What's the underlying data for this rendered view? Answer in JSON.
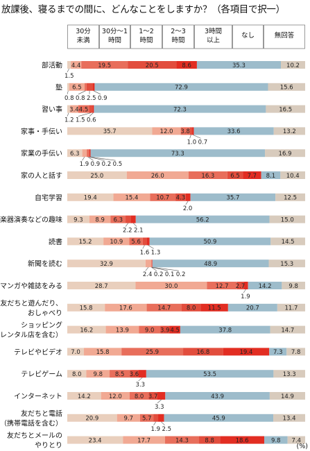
{
  "title": "放課後、寝るまでの間に、どんなことをしますか？（各項目で択一）",
  "unit_note": "(%)",
  "colors": [
    "#e9cfbd",
    "#f1a993",
    "#e86e5b",
    "#e22d22",
    "#9dbccb",
    "#d8cbbd"
  ],
  "chart_data": {
    "type": "bar",
    "orientation": "horizontal",
    "stacked": "100%",
    "legend_position": "top",
    "series": [
      {
        "name": "30分\n未満"
      },
      {
        "name": "30分～1\n時間"
      },
      {
        "name": "1～2\n時間"
      },
      {
        "name": "2～3\n時間"
      },
      {
        "name": "3時間\n以上"
      },
      {
        "name": "なし"
      },
      {
        "name": "無回答"
      }
    ],
    "categories": [
      {
        "label": "部活動",
        "values": [
          1.5,
          4.4,
          19.5,
          20.5,
          8.6,
          35.3,
          10.2
        ],
        "shown": [
          null,
          "4.4",
          "19.5",
          "20.5",
          "8.6",
          "35.3",
          "10.2"
        ],
        "callouts": [
          "1.5"
        ]
      },
      {
        "label": "塾",
        "values": [
          0.8,
          6.5,
          0.8,
          2.5,
          0.9,
          72.9,
          15.6
        ],
        "shown": [
          null,
          "6.5",
          null,
          null,
          null,
          "72.9",
          "15.6"
        ],
        "callouts": [
          "0.8",
          "0.8",
          "2.5",
          "0.9"
        ]
      },
      {
        "label": "習い事",
        "values": [
          1.2,
          3.4,
          4.5,
          1.5,
          0.6,
          72.3,
          16.5
        ],
        "shown": [
          null,
          "3.4",
          "4.5",
          null,
          null,
          "72.3",
          "16.5"
        ],
        "callouts": [
          "1.2",
          "1.5",
          "0.6"
        ]
      },
      {
        "label": "家事・手伝い",
        "values": [
          35.7,
          12.0,
          3.8,
          1.0,
          0.7,
          33.6,
          13.2
        ],
        "shown": [
          "35.7",
          "12.0",
          "3.8",
          null,
          null,
          "33.6",
          "13.2"
        ],
        "callouts": [
          "1.0",
          "0.7"
        ]
      },
      {
        "label": "家業の手伝い",
        "values": [
          6.3,
          1.9,
          0.9,
          0.2,
          0.5,
          73.3,
          16.9
        ],
        "shown": [
          "6.3",
          null,
          null,
          null,
          null,
          "73.3",
          "16.9"
        ],
        "callouts": [
          "1.9",
          "0.9",
          "0.2",
          "0.5"
        ]
      },
      {
        "label": "家の人と話す",
        "values": [
          25.0,
          26.0,
          16.3,
          6.5,
          7.7,
          8.1,
          10.4
        ],
        "shown": [
          "25.0",
          "26.0",
          "16.3",
          "6.5",
          "7.7",
          "8.1",
          "10.4"
        ],
        "callouts": []
      },
      {
        "label": "自宅学習",
        "values": [
          19.4,
          15.4,
          10.7,
          4.3,
          2.0,
          35.7,
          12.5
        ],
        "shown": [
          "19.4",
          "15.4",
          "10.7",
          "4.3",
          null,
          "35.7",
          "12.5"
        ],
        "callouts": [
          "2.0"
        ]
      },
      {
        "label": "楽器演奏などの趣味",
        "values": [
          9.3,
          8.9,
          6.3,
          2.2,
          2.1,
          56.2,
          15.0
        ],
        "shown": [
          "9.3",
          "8.9",
          "6.3",
          null,
          null,
          "56.2",
          "15.0"
        ],
        "callouts": [
          "2.2",
          "2.1"
        ]
      },
      {
        "label": "読書",
        "values": [
          15.2,
          10.9,
          5.6,
          1.6,
          1.3,
          50.9,
          14.5
        ],
        "shown": [
          "15.2",
          "10.9",
          "5.6",
          null,
          null,
          "50.9",
          "14.5"
        ],
        "callouts": [
          "1.6",
          "1.3"
        ]
      },
      {
        "label": "新聞を読む",
        "values": [
          32.9,
          2.4,
          0.2,
          0.1,
          0.2,
          48.9,
          15.3
        ],
        "shown": [
          "32.9",
          null,
          null,
          null,
          null,
          "48.9",
          "15.3"
        ],
        "callouts": [
          "2.4",
          "0.2",
          "0.1",
          "0.2"
        ]
      },
      {
        "label": "マンガや雑誌をみる",
        "values": [
          28.7,
          30.0,
          12.7,
          2.7,
          1.9,
          14.2,
          9.8
        ],
        "shown": [
          "28.7",
          "30.0",
          "12.7",
          "2.7",
          null,
          "14.2",
          "9.8"
        ],
        "callouts": [
          "1.9"
        ]
      },
      {
        "label": "友だちと遊んだり、\nおしゃべり",
        "values": [
          15.8,
          17.6,
          14.7,
          8.0,
          11.5,
          20.7,
          11.7
        ],
        "shown": [
          "15.8",
          "17.6",
          "14.7",
          "8.0",
          "11.5",
          "20.7",
          "11.7"
        ],
        "callouts": []
      },
      {
        "label": "ショッピング\n（レンタル店を含む）",
        "values": [
          16.2,
          13.9,
          9.0,
          3.9,
          4.5,
          37.8,
          14.7
        ],
        "shown": [
          "16.2",
          "13.9",
          "9.0",
          "3.9",
          "4.5",
          "37.8",
          "14.7"
        ],
        "callouts": []
      },
      {
        "label": "テレビやビデオ",
        "values": [
          7.0,
          15.8,
          25.9,
          16.8,
          19.4,
          7.3,
          7.8
        ],
        "shown": [
          "7.0",
          "15.8",
          "25.9",
          "16.8",
          "19.4",
          "7.3",
          "7.8"
        ],
        "callouts": []
      },
      {
        "label": "テレビゲーム",
        "values": [
          8.0,
          9.8,
          8.5,
          3.6,
          3.3,
          53.5,
          13.3
        ],
        "shown": [
          "8.0",
          "9.8",
          "8.5",
          "3.6",
          null,
          "53.5",
          "13.3"
        ],
        "callouts": [
          "3.3"
        ]
      },
      {
        "label": "インターネット",
        "values": [
          14.2,
          12.0,
          8.0,
          3.7,
          3.3,
          43.9,
          14.9
        ],
        "shown": [
          "14.2",
          "12.0",
          "8.0",
          "3.7",
          null,
          "43.9",
          "14.9"
        ],
        "callouts": [
          "3.3"
        ]
      },
      {
        "label": "友だちと電話\n（携帯電話を含む）",
        "values": [
          20.9,
          9.7,
          5.7,
          1.9,
          2.5,
          45.9,
          13.4
        ],
        "shown": [
          "20.9",
          "9.7",
          "5.7",
          null,
          null,
          "45.9",
          "13.4"
        ],
        "callouts": [
          "1.9",
          "2.5"
        ]
      },
      {
        "label": "友だちとメールの\nやりとり",
        "values": [
          23.4,
          17.7,
          14.3,
          8.8,
          18.6,
          9.8,
          7.4
        ],
        "shown": [
          "23.4",
          "17.7",
          "14.3",
          "8.8",
          "18.6",
          "9.8",
          "7.4"
        ],
        "callouts": []
      }
    ]
  }
}
